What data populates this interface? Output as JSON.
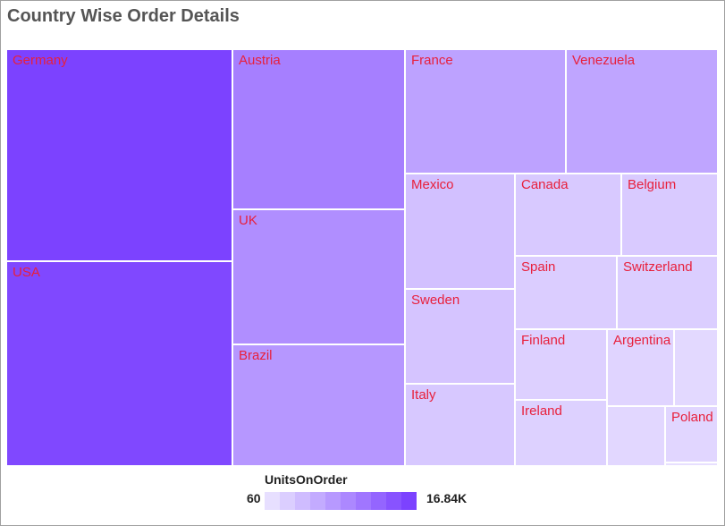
{
  "chart_data": {
    "type": "treemap",
    "title": "Country Wise Order Details",
    "legend": {
      "title": "UnitsOnOrder",
      "min_label": "60",
      "max_label": "16.84K",
      "min": 60,
      "max": 16840,
      "placement": "bottom-center",
      "steps": 10
    },
    "colors": {
      "low": "#e7dfff",
      "high": "#7c42ff",
      "label": "#e8203c",
      "border": "#ffffff"
    },
    "items": [
      {
        "name": "Germany",
        "value": 16840
      },
      {
        "name": "USA",
        "value": 16200
      },
      {
        "name": "Austria",
        "value": 10300
      },
      {
        "name": "UK",
        "value": 8700
      },
      {
        "name": "Brazil",
        "value": 7800
      },
      {
        "name": "France",
        "value": 6600
      },
      {
        "name": "Venezuela",
        "value": 6300
      },
      {
        "name": "Mexico",
        "value": 3400
      },
      {
        "name": "Sweden",
        "value": 2900
      },
      {
        "name": "Italy",
        "value": 2500
      },
      {
        "name": "Canada",
        "value": 2400
      },
      {
        "name": "Belgium",
        "value": 2300
      },
      {
        "name": "Spain",
        "value": 2000
      },
      {
        "name": "Switzerland",
        "value": 1900
      },
      {
        "name": "Finland",
        "value": 1700
      },
      {
        "name": "Ireland",
        "value": 1600
      },
      {
        "name": "Argentina",
        "value": 1200
      },
      {
        "name": "",
        "value": 700
      },
      {
        "name": "",
        "value": 900
      },
      {
        "name": "Poland",
        "value": 1000
      },
      {
        "name": "",
        "value": 60
      }
    ]
  }
}
